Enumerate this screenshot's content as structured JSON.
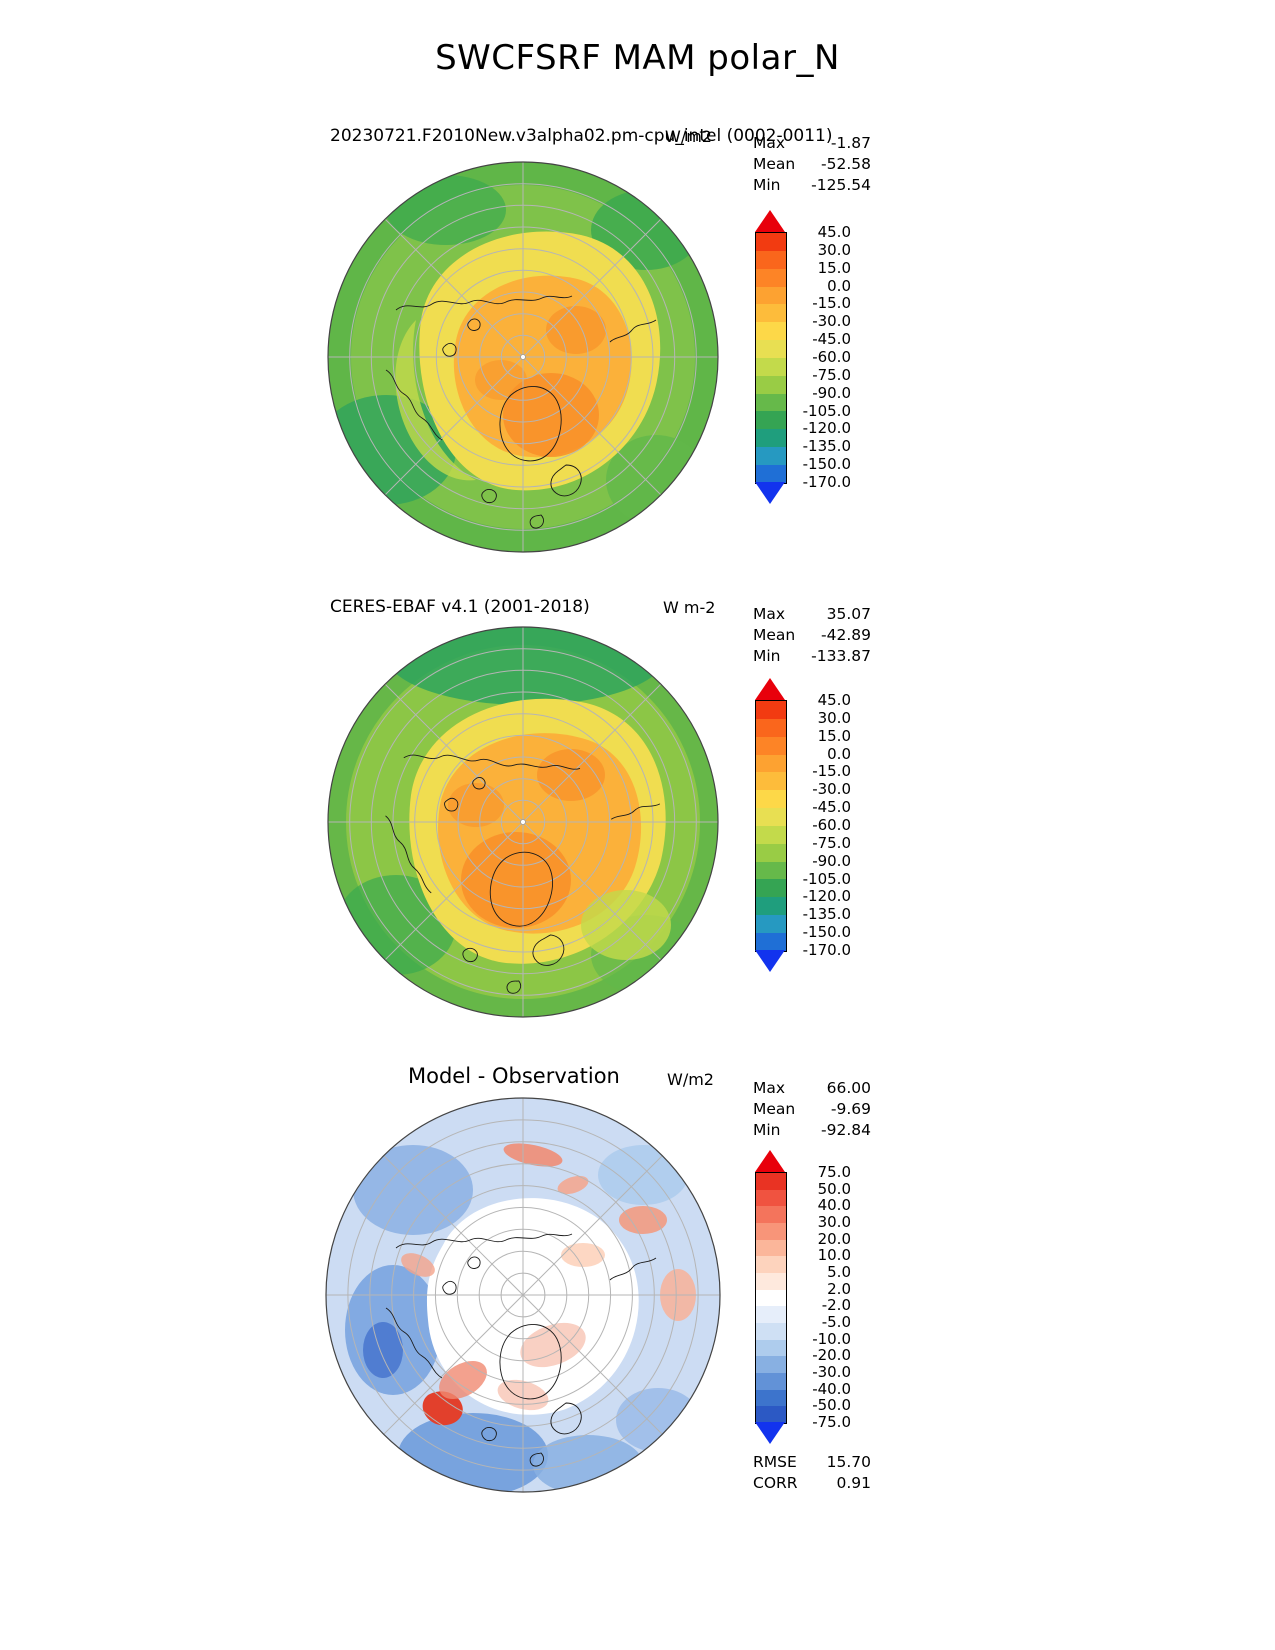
{
  "title": "SWCFSRF MAM polar_N",
  "chart_data": [
    {
      "type": "heatmap",
      "projection": "polar_N",
      "title": "20230721.F2010New.v3alpha02.pm-cpu_intel (0002-0011)",
      "units": "W/m2",
      "stats": {
        "max_label": "Max",
        "max": "-1.87",
        "mean_label": "Mean",
        "mean": "-52.58",
        "min_label": "Min",
        "min": "-125.54"
      },
      "colorbar": {
        "tick_labels": [
          "45.0",
          "30.0",
          "15.0",
          "0.0",
          "-15.0",
          "-30.0",
          "-45.0",
          "-60.0",
          "-75.0",
          "-90.0",
          "-105.0",
          "-120.0",
          "-135.0",
          "-150.0",
          "-170.0"
        ],
        "segment_colors_top_to_bottom": [
          "#f23b11",
          "#fa661c",
          "#fd8426",
          "#fda231",
          "#fdbc3b",
          "#fdd848",
          "#e8df52",
          "#c3da4b",
          "#99cc45",
          "#66b94a",
          "#35a453",
          "#1f9e7d",
          "#2699c1",
          "#1f6fd6"
        ],
        "over_color": "#e8000b",
        "under_color": "#1233ee"
      }
    },
    {
      "type": "heatmap",
      "projection": "polar_N",
      "title": "CERES-EBAF v4.1 (2001-2018)",
      "units": "W m-2",
      "stats": {
        "max_label": "Max",
        "max": "35.07",
        "mean_label": "Mean",
        "mean": "-42.89",
        "min_label": "Min",
        "min": "-133.87"
      },
      "colorbar": {
        "tick_labels": [
          "45.0",
          "30.0",
          "15.0",
          "0.0",
          "-15.0",
          "-30.0",
          "-45.0",
          "-60.0",
          "-75.0",
          "-90.0",
          "-105.0",
          "-120.0",
          "-135.0",
          "-150.0",
          "-170.0"
        ],
        "segment_colors_top_to_bottom": [
          "#f23b11",
          "#fa661c",
          "#fd8426",
          "#fda231",
          "#fdbc3b",
          "#fdd848",
          "#e8df52",
          "#c3da4b",
          "#99cc45",
          "#66b94a",
          "#35a453",
          "#1f9e7d",
          "#2699c1",
          "#1f6fd6"
        ],
        "over_color": "#e8000b",
        "under_color": "#1233ee"
      }
    },
    {
      "type": "heatmap",
      "projection": "polar_N",
      "title": "Model - Observation",
      "units": "W/m2",
      "stats": {
        "max_label": "Max",
        "max": "66.00",
        "mean_label": "Mean",
        "mean": "-9.69",
        "min_label": "Min",
        "min": "-92.84"
      },
      "extra_stats": {
        "rmse_label": "RMSE",
        "rmse": "15.70",
        "corr_label": "CORR",
        "corr": "0.91"
      },
      "colorbar": {
        "tick_labels": [
          "75.0",
          "50.0",
          "40.0",
          "30.0",
          "20.0",
          "10.0",
          "5.0",
          "2.0",
          "-2.0",
          "-5.0",
          "-10.0",
          "-20.0",
          "-30.0",
          "-40.0",
          "-50.0",
          "-75.0"
        ],
        "segment_colors_top_to_bottom": [
          "#e93323",
          "#f05340",
          "#f4745c",
          "#f89579",
          "#fbb69a",
          "#fdd3bd",
          "#fee9dd",
          "#ffffff",
          "#e6eefa",
          "#cfe0f4",
          "#aecced",
          "#88b0e2",
          "#6292d7",
          "#3d74cc",
          "#2c59c4"
        ],
        "over_color": "#e8000b",
        "under_color": "#1233ee"
      }
    }
  ]
}
